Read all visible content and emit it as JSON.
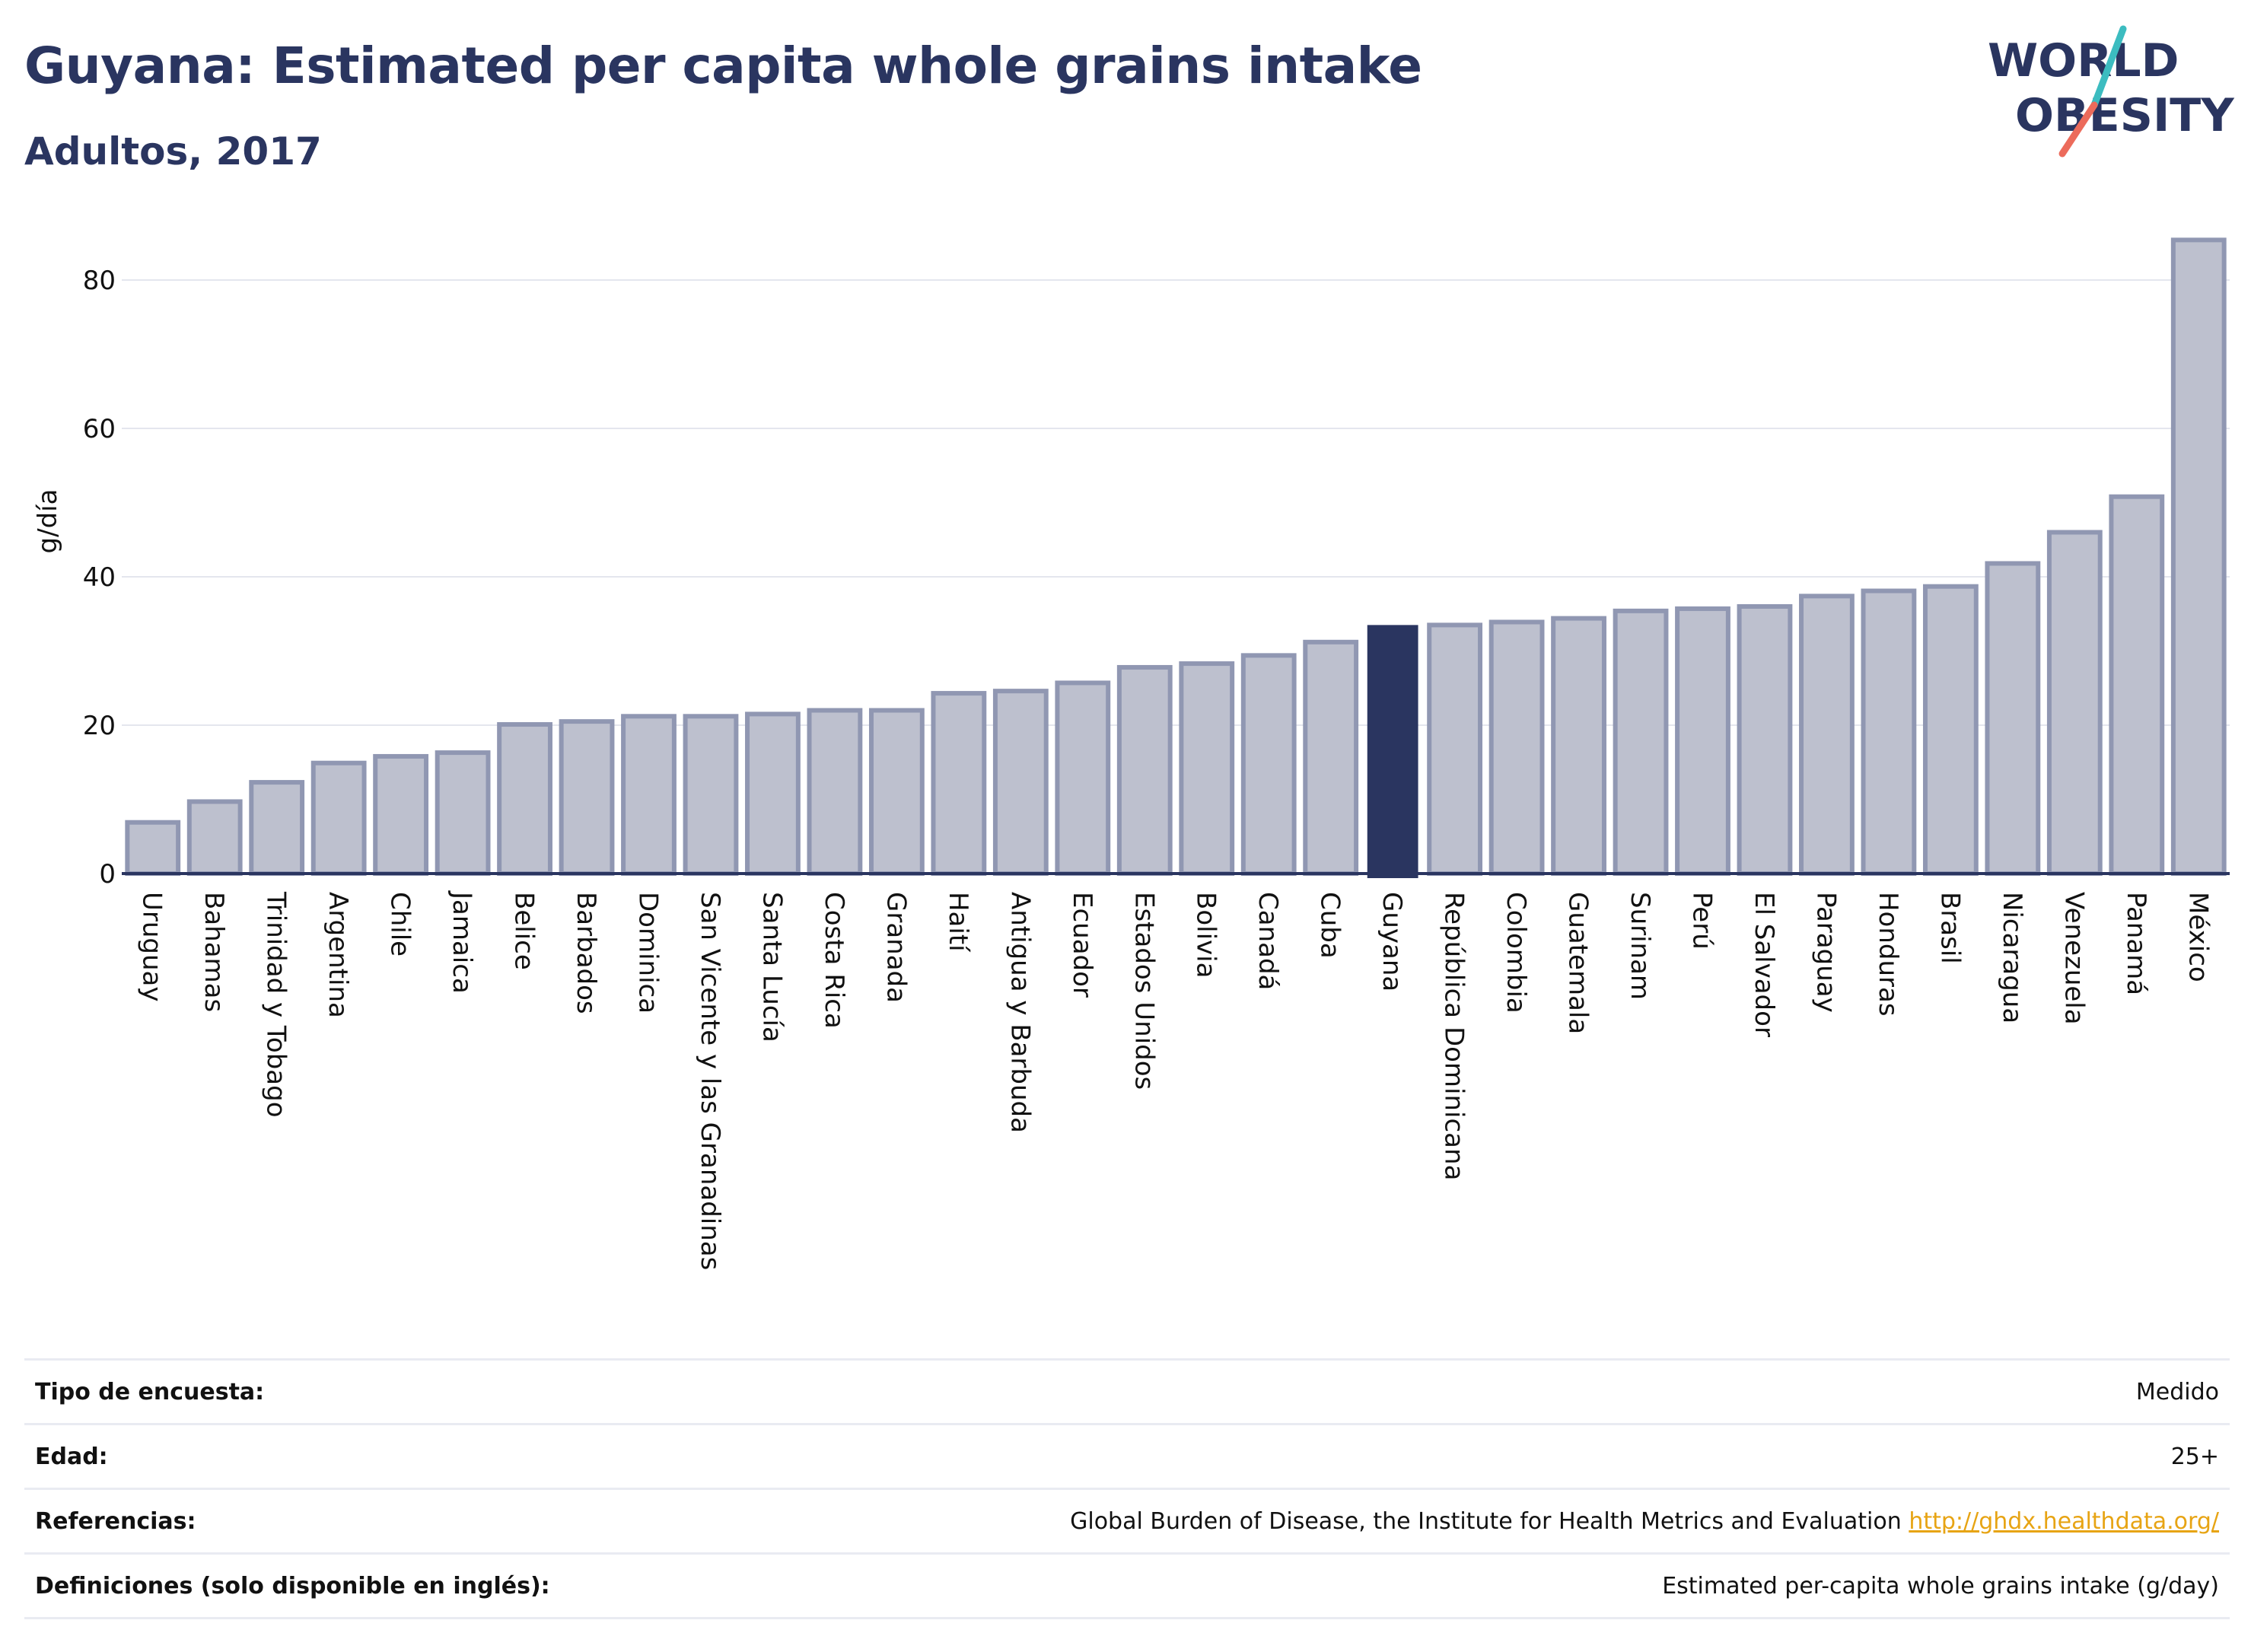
{
  "header": {
    "title": "Guyana: Estimated per capita whole grains intake",
    "subtitle": "Adultos, 2017"
  },
  "logo": {
    "line1": "WORLD",
    "line2": "OBESITY",
    "colors": {
      "text": "#2a3560",
      "slash_teal": "#3cbcc0",
      "slash_coral": "#ec6b5b"
    }
  },
  "colors": {
    "bar": "#bdc0ce",
    "bar_outline": "#9097b2",
    "highlight": "#2a3560",
    "grid": "#e4e6ee",
    "axis": "#2a3560"
  },
  "chart_data": {
    "type": "bar",
    "ylabel": "g/día",
    "ylim": [
      0,
      88
    ],
    "yticks": [
      0,
      20,
      40,
      60,
      80
    ],
    "grid": true,
    "highlight": "Guyana",
    "categories": [
      "Uruguay",
      "Bahamas",
      "Trinidad y Tobago",
      "Argentina",
      "Chile",
      "Jamaica",
      "Belice",
      "Barbados",
      "Dominica",
      "San Vicente y las Granadinas",
      "Santa Lucía",
      "Costa Rica",
      "Granada",
      "Haití",
      "Antigua y Barbuda",
      "Ecuador",
      "Estados Unidos",
      "Bolivia",
      "Canadá",
      "Cuba",
      "Guyana",
      "República Dominicana",
      "Colombia",
      "Guatemala",
      "Surinam",
      "Perú",
      "El Salvador",
      "Paraguay",
      "Honduras",
      "Brasil",
      "Nicaragua",
      "Venezuela",
      "Panamá",
      "México"
    ],
    "values": [
      6.9,
      9.7,
      12.3,
      14.9,
      15.8,
      16.3,
      20.1,
      20.5,
      21.2,
      21.2,
      21.5,
      22.0,
      22.0,
      24.3,
      24.6,
      25.7,
      27.8,
      28.3,
      29.4,
      31.2,
      33.5,
      33.5,
      33.9,
      34.4,
      35.4,
      35.7,
      36.0,
      37.4,
      38.1,
      38.7,
      41.8,
      46.0,
      50.8,
      85.4
    ]
  },
  "meta": {
    "rows": [
      {
        "label": "Tipo de encuesta:",
        "value": "Medido",
        "link": ""
      },
      {
        "label": "Edad:",
        "value": "25+",
        "link": ""
      },
      {
        "label": "Referencias:",
        "value": "Global Burden of Disease, the Institute for Health Metrics and Evaluation",
        "link": "http://ghdx.healthdata.org/"
      },
      {
        "label": "Definiciones (solo disponible en inglés):",
        "value": "Estimated per-capita whole grains intake (g/day)",
        "link": ""
      }
    ]
  }
}
